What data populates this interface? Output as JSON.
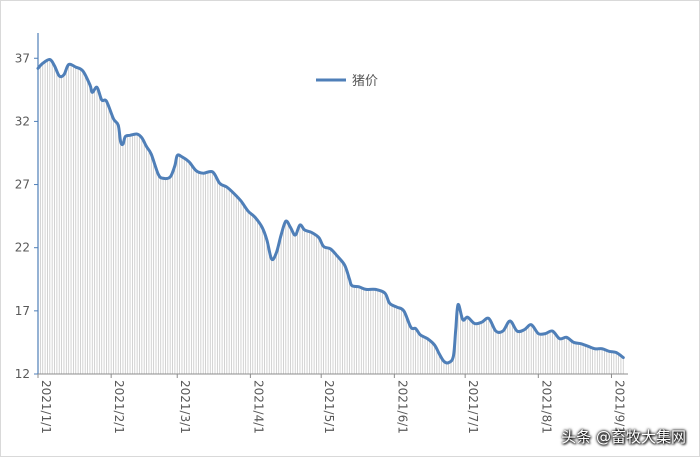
{
  "chart_data": {
    "type": "line",
    "title": "",
    "xlabel": "",
    "ylabel": "",
    "ylim": [
      12,
      39
    ],
    "yticks": [
      12,
      17,
      22,
      27,
      32,
      37
    ],
    "xticks": [
      {
        "label": "2021/1/1",
        "x": "2021-01-01"
      },
      {
        "label": "2021/2/1",
        "x": "2021-02-01"
      },
      {
        "label": "2021/3/1",
        "x": "2021-03-01"
      },
      {
        "label": "2021/4/1",
        "x": "2021-04-01"
      },
      {
        "label": "2021/5/1",
        "x": "2021-05-01"
      },
      {
        "label": "2021/6/1",
        "x": "2021-06-01"
      },
      {
        "label": "2021/7/1",
        "x": "2021-07-01"
      },
      {
        "label": "2021/8/1",
        "x": "2021-08-01"
      },
      {
        "label": "2021/9/1",
        "x": "2021-09-01"
      }
    ],
    "xlim": [
      "2021-01-01",
      "2021-09-08"
    ],
    "legend": {
      "position": "top-center"
    },
    "drop_lines": true,
    "series": [
      {
        "name": "猪价",
        "color": "#4f7fb8",
        "points": [
          [
            "2021-01-01",
            36.2
          ],
          [
            "2021-01-03",
            36.6
          ],
          [
            "2021-01-06",
            36.9
          ],
          [
            "2021-01-08",
            36.4
          ],
          [
            "2021-01-10",
            35.6
          ],
          [
            "2021-01-12",
            35.7
          ],
          [
            "2021-01-14",
            36.5
          ],
          [
            "2021-01-17",
            36.3
          ],
          [
            "2021-01-20",
            36.0
          ],
          [
            "2021-01-23",
            34.9
          ],
          [
            "2021-01-24",
            34.3
          ],
          [
            "2021-01-26",
            34.7
          ],
          [
            "2021-01-28",
            33.7
          ],
          [
            "2021-01-30",
            33.6
          ],
          [
            "2021-02-02",
            32.2
          ],
          [
            "2021-02-04",
            31.7
          ],
          [
            "2021-02-05",
            30.4
          ],
          [
            "2021-02-06",
            30.2
          ],
          [
            "2021-02-07",
            30.8
          ],
          [
            "2021-02-09",
            30.9
          ],
          [
            "2021-02-12",
            31.0
          ],
          [
            "2021-02-14",
            30.7
          ],
          [
            "2021-02-16",
            30.0
          ],
          [
            "2021-02-18",
            29.4
          ],
          [
            "2021-02-21",
            27.8
          ],
          [
            "2021-02-23",
            27.5
          ],
          [
            "2021-02-26",
            27.6
          ],
          [
            "2021-02-28",
            28.5
          ],
          [
            "2021-03-01",
            29.3
          ],
          [
            "2021-03-03",
            29.2
          ],
          [
            "2021-03-06",
            28.8
          ],
          [
            "2021-03-09",
            28.1
          ],
          [
            "2021-03-12",
            27.9
          ],
          [
            "2021-03-16",
            28.0
          ],
          [
            "2021-03-19",
            27.1
          ],
          [
            "2021-03-22",
            26.8
          ],
          [
            "2021-03-25",
            26.3
          ],
          [
            "2021-03-28",
            25.7
          ],
          [
            "2021-03-31",
            24.9
          ],
          [
            "2021-04-03",
            24.4
          ],
          [
            "2021-04-06",
            23.6
          ],
          [
            "2021-04-08",
            22.6
          ],
          [
            "2021-04-10",
            21.1
          ],
          [
            "2021-04-12",
            21.6
          ],
          [
            "2021-04-14",
            23.0
          ],
          [
            "2021-04-16",
            24.1
          ],
          [
            "2021-04-18",
            23.6
          ],
          [
            "2021-04-20",
            23.0
          ],
          [
            "2021-04-22",
            23.8
          ],
          [
            "2021-04-24",
            23.4
          ],
          [
            "2021-04-27",
            23.2
          ],
          [
            "2021-04-30",
            22.8
          ],
          [
            "2021-05-02",
            22.1
          ],
          [
            "2021-05-05",
            21.9
          ],
          [
            "2021-05-08",
            21.3
          ],
          [
            "2021-05-11",
            20.6
          ],
          [
            "2021-05-13",
            19.5
          ],
          [
            "2021-05-14",
            19.0
          ],
          [
            "2021-05-17",
            18.9
          ],
          [
            "2021-05-20",
            18.7
          ],
          [
            "2021-05-24",
            18.7
          ],
          [
            "2021-05-28",
            18.4
          ],
          [
            "2021-05-30",
            17.6
          ],
          [
            "2021-06-02",
            17.3
          ],
          [
            "2021-06-05",
            17.0
          ],
          [
            "2021-06-08",
            15.7
          ],
          [
            "2021-06-10",
            15.6
          ],
          [
            "2021-06-12",
            15.1
          ],
          [
            "2021-06-15",
            14.8
          ],
          [
            "2021-06-18",
            14.3
          ],
          [
            "2021-06-20",
            13.6
          ],
          [
            "2021-06-22",
            13.0
          ],
          [
            "2021-06-24",
            12.9
          ],
          [
            "2021-06-26",
            13.4
          ],
          [
            "2021-06-27",
            15.5
          ],
          [
            "2021-06-28",
            17.5
          ],
          [
            "2021-06-30",
            16.3
          ],
          [
            "2021-07-02",
            16.5
          ],
          [
            "2021-07-05",
            16.0
          ],
          [
            "2021-07-08",
            16.1
          ],
          [
            "2021-07-11",
            16.4
          ],
          [
            "2021-07-14",
            15.4
          ],
          [
            "2021-07-17",
            15.4
          ],
          [
            "2021-07-20",
            16.2
          ],
          [
            "2021-07-23",
            15.4
          ],
          [
            "2021-07-26",
            15.5
          ],
          [
            "2021-07-29",
            15.9
          ],
          [
            "2021-08-01",
            15.2
          ],
          [
            "2021-08-04",
            15.2
          ],
          [
            "2021-08-07",
            15.4
          ],
          [
            "2021-08-10",
            14.8
          ],
          [
            "2021-08-13",
            14.9
          ],
          [
            "2021-08-16",
            14.5
          ],
          [
            "2021-08-19",
            14.4
          ],
          [
            "2021-08-22",
            14.2
          ],
          [
            "2021-08-25",
            14.0
          ],
          [
            "2021-08-28",
            14.0
          ],
          [
            "2021-08-31",
            13.8
          ],
          [
            "2021-09-03",
            13.7
          ],
          [
            "2021-09-06",
            13.3
          ]
        ]
      }
    ]
  },
  "watermark": "头条 @畜牧大集网"
}
